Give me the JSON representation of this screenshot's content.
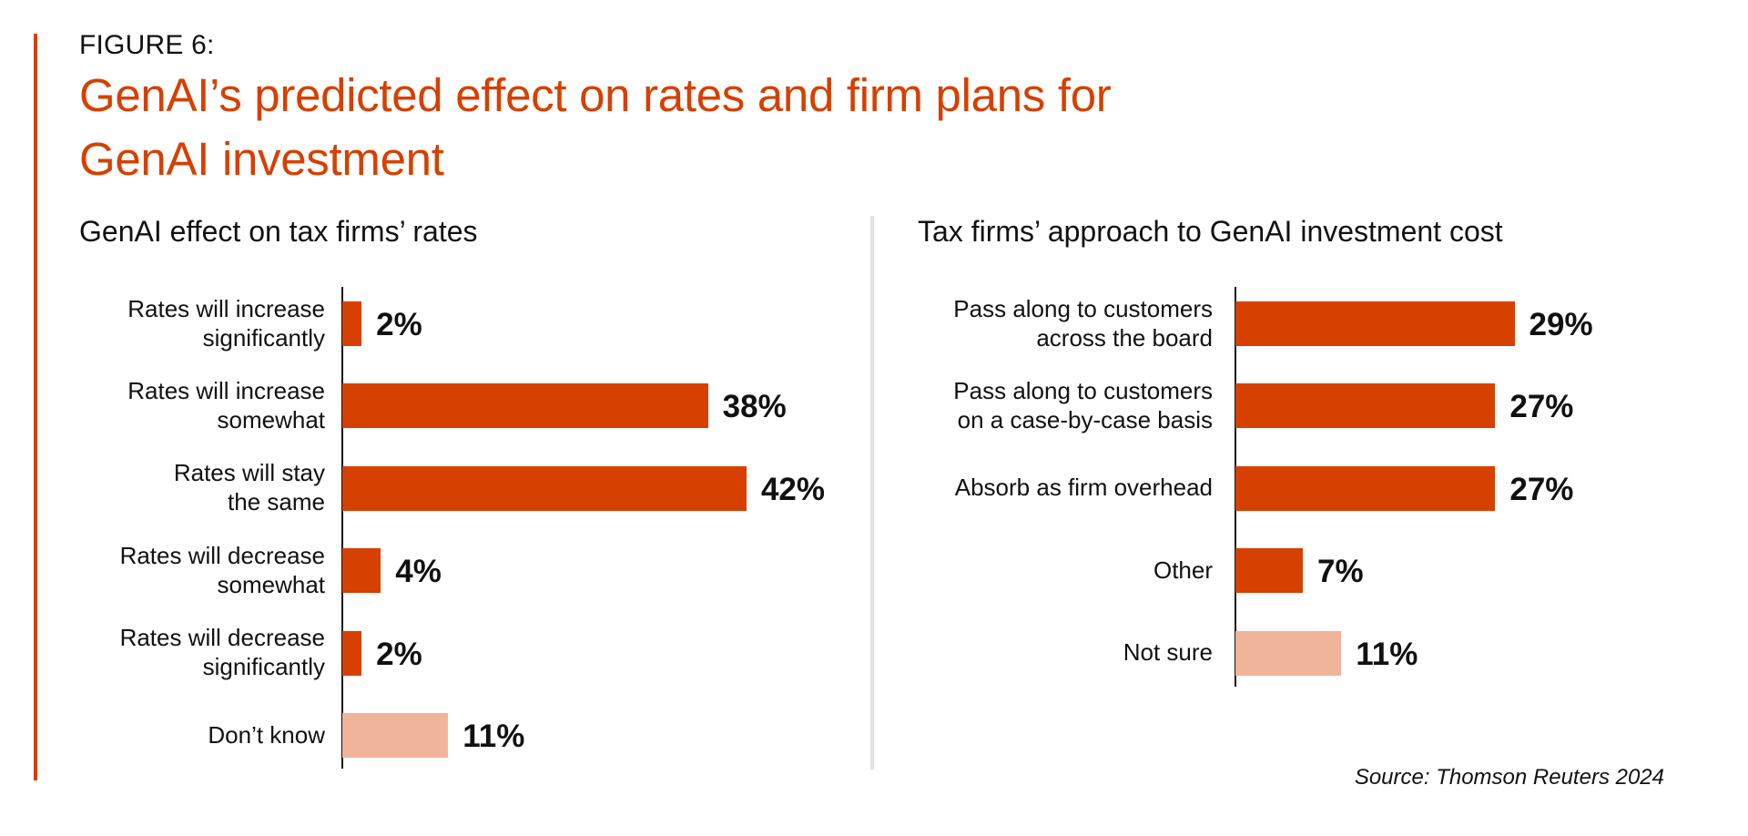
{
  "figure_label": "FIGURE 6:",
  "title_lines": [
    "GenAI’s predicted effect on rates and firm plans for",
    "GenAI investment"
  ],
  "source": "Source: Thomson Reuters 2024",
  "colors": {
    "accent": "#D64000",
    "bar_primary": "#D64000",
    "bar_muted": "#EFB49A",
    "divider": "#E2E2E2",
    "text": "#111111"
  },
  "chart_data": [
    {
      "type": "bar",
      "orientation": "horizontal",
      "title": "GenAI effect on tax firms’ rates",
      "xlabel": "",
      "ylabel": "",
      "unit": "%",
      "grid": false,
      "xlim": [
        0,
        100
      ],
      "categories": [
        [
          "Rates will increase",
          "significantly"
        ],
        [
          "Rates will increase",
          "somewhat"
        ],
        [
          "Rates will stay",
          "the same"
        ],
        [
          "Rates will decrease",
          "somewhat"
        ],
        [
          "Rates will decrease",
          "significantly"
        ],
        [
          "Don’t know"
        ]
      ],
      "values": [
        2,
        38,
        42,
        4,
        2,
        11
      ],
      "value_labels": [
        "2%",
        "38%",
        "42%",
        "4%",
        "2%",
        "11%"
      ],
      "muted": [
        false,
        false,
        false,
        false,
        false,
        true
      ]
    },
    {
      "type": "bar",
      "orientation": "horizontal",
      "title": "Tax firms’ approach to GenAI investment cost",
      "xlabel": "",
      "ylabel": "",
      "unit": "%",
      "grid": false,
      "xlim": [
        0,
        100
      ],
      "categories": [
        [
          "Pass along to customers",
          "across the board"
        ],
        [
          "Pass along to customers",
          "on a case-by-case basis"
        ],
        [
          "Absorb as firm overhead"
        ],
        [
          "Other"
        ],
        [
          "Not sure"
        ]
      ],
      "values": [
        29,
        27,
        27,
        7,
        11
      ],
      "value_labels": [
        "29%",
        "27%",
        "27%",
        "7%",
        "11%"
      ],
      "muted": [
        false,
        false,
        false,
        false,
        true
      ]
    }
  ]
}
